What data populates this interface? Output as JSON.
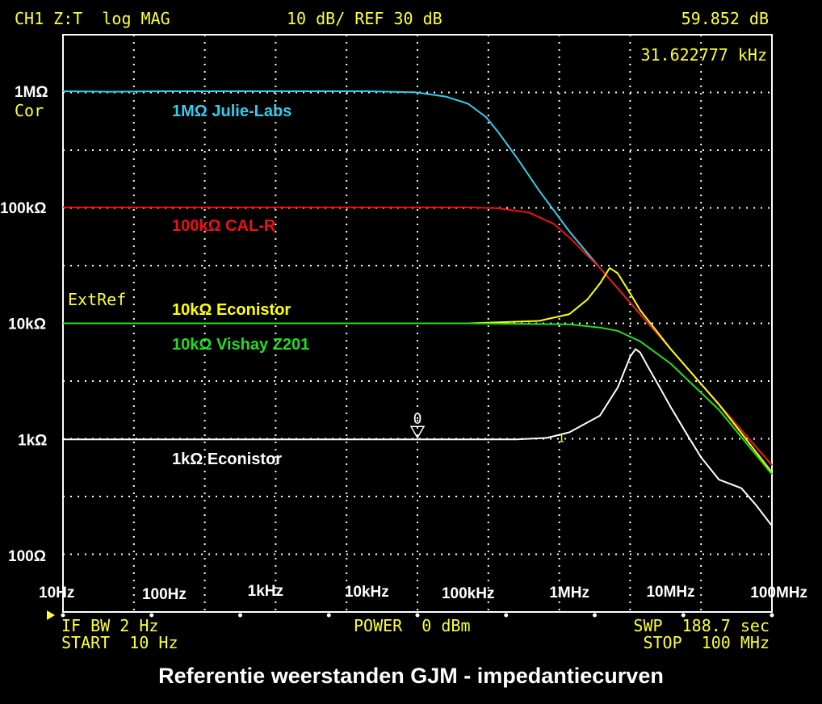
{
  "status_bar": {
    "left": "CH1 Z:T  log MAG",
    "center": "10 dB/ REF 30 dB",
    "right": "59.852 dB"
  },
  "marker_readout": "31.622777 kHz",
  "labels": {
    "cor": "Cor",
    "extref": "ExtRef",
    "marker0": "0",
    "marker1": "1"
  },
  "footer": {
    "left1": "IF BW 2 Hz",
    "left2": "START  10 Hz",
    "center": "POWER  0 dBm",
    "right1": "SWP  188.7 sec",
    "right2": "STOP  100 MHz"
  },
  "caption": "Referentie weerstanden GJM - impedantiecurven",
  "colors": {
    "instrument_text": "#ffff33",
    "grid": "#ffffff",
    "series_cyan": "#33ccee",
    "series_red": "#ee1111",
    "series_yellow": "#ffff00",
    "series_green": "#22dd22",
    "series_white": "#ffffff"
  },
  "chart_data": {
    "type": "line",
    "x_scale": "log",
    "y_scale": "log",
    "xlim": [
      10,
      100000000
    ],
    "ylim": [
      100,
      1000000
    ],
    "x_ticks": [
      {
        "value": 10,
        "label": "10Hz"
      },
      {
        "value": 100,
        "label": "100Hz"
      },
      {
        "value": 1000,
        "label": "1kHz"
      },
      {
        "value": 10000,
        "label": "10kHz"
      },
      {
        "value": 100000,
        "label": "100kHz"
      },
      {
        "value": 1000000,
        "label": "1MHz"
      },
      {
        "value": 10000000,
        "label": "10MHz"
      },
      {
        "value": 100000000,
        "label": "100MHz"
      }
    ],
    "y_ticks": [
      {
        "value": 1000000,
        "label": "1MΩ"
      },
      {
        "value": 100000,
        "label": "100kΩ"
      },
      {
        "value": 10000,
        "label": "10kΩ"
      },
      {
        "value": 1000,
        "label": "1kΩ"
      },
      {
        "value": 100,
        "label": "100Ω"
      }
    ],
    "grid": true,
    "series": [
      {
        "name": "1MΩ Julie-Labs",
        "color": "#33ccee",
        "points": [
          [
            10,
            1000000
          ],
          [
            30,
            990000
          ],
          [
            100,
            1000000
          ],
          [
            1000,
            1000000
          ],
          [
            10000,
            1000000
          ],
          [
            30000,
            980000
          ],
          [
            60000,
            900000
          ],
          [
            100000,
            780000
          ],
          [
            150000,
            600000
          ],
          [
            200000,
            440000
          ],
          [
            300000,
            270000
          ],
          [
            500000,
            140000
          ],
          [
            1000000,
            62000
          ],
          [
            2000000,
            30000
          ],
          [
            3000000,
            20000
          ],
          [
            5000000,
            12000
          ],
          [
            10000000,
            6000
          ],
          [
            30000000,
            2000
          ],
          [
            100000000,
            600
          ]
        ]
      },
      {
        "name": "100kΩ CAL-R",
        "color": "#ee1111",
        "points": [
          [
            10,
            100000
          ],
          [
            10000,
            100000
          ],
          [
            100000,
            100000
          ],
          [
            200000,
            98000
          ],
          [
            400000,
            90000
          ],
          [
            700000,
            72000
          ],
          [
            1000000,
            55000
          ],
          [
            2000000,
            30000
          ],
          [
            3000000,
            20000
          ],
          [
            5000000,
            12000
          ],
          [
            10000000,
            6000
          ],
          [
            30000000,
            2000
          ],
          [
            100000000,
            600
          ]
        ]
      },
      {
        "name": "10kΩ Econistor",
        "color": "#ffff00",
        "points": [
          [
            10,
            10000
          ],
          [
            100000,
            10000
          ],
          [
            500000,
            10500
          ],
          [
            1000000,
            12000
          ],
          [
            1500000,
            16000
          ],
          [
            2000000,
            22000
          ],
          [
            2500000,
            30000
          ],
          [
            3000000,
            27000
          ],
          [
            4000000,
            18000
          ],
          [
            5000000,
            13000
          ],
          [
            10000000,
            6000
          ],
          [
            30000000,
            2000
          ],
          [
            100000000,
            520
          ]
        ]
      },
      {
        "name": "10kΩ Vishay Z201",
        "color": "#22dd22",
        "points": [
          [
            10,
            10000
          ],
          [
            100000,
            10000
          ],
          [
            1000000,
            9800
          ],
          [
            2000000,
            9200
          ],
          [
            3000000,
            8600
          ],
          [
            5000000,
            7000
          ],
          [
            10000000,
            4500
          ],
          [
            30000000,
            1800
          ],
          [
            100000000,
            500
          ]
        ]
      },
      {
        "name": "1kΩ Econistor",
        "color": "#ffffff",
        "points": [
          [
            10,
            1000
          ],
          [
            300000,
            1000
          ],
          [
            600000,
            1030
          ],
          [
            1000000,
            1150
          ],
          [
            2000000,
            1600
          ],
          [
            3000000,
            2800
          ],
          [
            4000000,
            5200
          ],
          [
            4500000,
            6000
          ],
          [
            5000000,
            5600
          ],
          [
            6000000,
            4200
          ],
          [
            8000000,
            2700
          ],
          [
            10000000,
            1900
          ],
          [
            15000000,
            1050
          ],
          [
            20000000,
            700
          ],
          [
            30000000,
            450
          ],
          [
            50000000,
            380
          ],
          [
            70000000,
            270
          ],
          [
            100000000,
            180
          ]
        ]
      }
    ],
    "annotations": [
      {
        "text": "1MΩ Julie-Labs",
        "color": "#33ccee"
      },
      {
        "text": "100kΩ CAL-R",
        "color": "#ee1111"
      },
      {
        "text": "10kΩ Econistor",
        "color": "#ffff00"
      },
      {
        "text": "10kΩ Vishay Z201",
        "color": "#22dd22"
      },
      {
        "text": "1kΩ Econistor",
        "color": "#ffffff"
      }
    ],
    "markers": [
      {
        "label": "0",
        "x": 31622.777
      },
      {
        "label": "1",
        "x": 1000000
      }
    ]
  }
}
